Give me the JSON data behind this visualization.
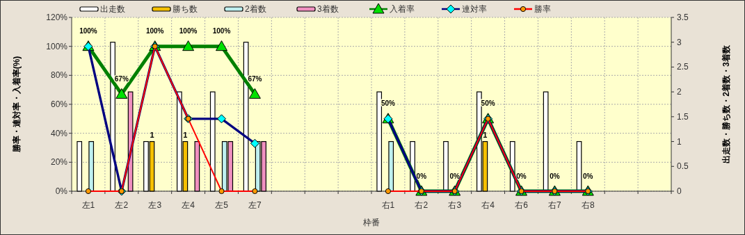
{
  "chart_data": {
    "type": "bar",
    "xlabel": "枠番",
    "ylabel": "勝率・連対率・入着率(%)",
    "y2label": "出走数・勝ち数・2着数・3着数",
    "categories": [
      "左1",
      "左2",
      "左3",
      "左4",
      "左5",
      "左7",
      null,
      null,
      null,
      "右1",
      "右2",
      "右3",
      "右4",
      "右6",
      "右7",
      "右8",
      null,
      null
    ],
    "ylim": [
      0,
      120
    ],
    "yticks": [
      {
        "value": 0,
        "label": "0%"
      },
      {
        "value": 20,
        "label": "20%"
      },
      {
        "value": 40,
        "label": "40%"
      },
      {
        "value": 60,
        "label": "60%"
      },
      {
        "value": 80,
        "label": "80%"
      },
      {
        "value": 100,
        "label": "100%"
      },
      {
        "value": 120,
        "label": "120%"
      }
    ],
    "y2lim": [
      0,
      3.5
    ],
    "y2ticks": [
      0,
      0.5,
      1,
      1.5,
      2,
      2.5,
      3,
      3.5
    ],
    "grid": true,
    "legend": "top",
    "series": [
      {
        "name": "出走数",
        "axis": "y2",
        "color": "#ffffff",
        "values": [
          1,
          3,
          1,
          2,
          2,
          3,
          null,
          null,
          null,
          2,
          1,
          1,
          2,
          1,
          2,
          1,
          null,
          null
        ]
      },
      {
        "name": "勝ち数",
        "axis": "y2",
        "color": "#f5c000",
        "values": [
          0,
          0,
          1,
          1,
          0,
          0,
          null,
          null,
          null,
          0,
          0,
          0,
          1,
          0,
          0,
          0,
          null,
          null
        ],
        "value_labels": [
          null,
          null,
          "1",
          "1",
          null,
          null,
          null,
          null,
          null,
          null,
          null,
          null,
          "1",
          null,
          null,
          null,
          null,
          null
        ]
      },
      {
        "name": "2着数",
        "axis": "y2",
        "color": "#bff0f0",
        "values": [
          1,
          0,
          0,
          0,
          1,
          1,
          null,
          null,
          null,
          1,
          0,
          0,
          0,
          0,
          0,
          0,
          null,
          null
        ]
      },
      {
        "name": "3着数",
        "axis": "y2",
        "color": "#f090c0",
        "values": [
          0,
          2,
          0,
          1,
          1,
          1,
          null,
          null,
          null,
          0,
          0,
          0,
          0,
          0,
          0,
          0,
          null,
          null
        ]
      },
      {
        "name": "入着率",
        "type": "line",
        "color": "#008000",
        "marker": "triangle",
        "colors": [
          "#00e000",
          "#00e000",
          "#00e000",
          "#00e000",
          "#00e000",
          "#00e000",
          null,
          null,
          null,
          "#00e000",
          "#00e000",
          "#00e000",
          "#00e000",
          "#00e000",
          "#00e000",
          "#00e000",
          null,
          null
        ],
        "values": [
          100,
          67,
          100,
          100,
          100,
          67,
          null,
          null,
          null,
          50,
          0,
          0,
          50,
          0,
          0,
          0,
          null,
          null
        ],
        "value_labels": [
          "100%",
          "67%",
          "100%",
          "100%",
          "100%",
          "67%",
          null,
          null,
          null,
          "50%",
          "0%",
          "0%",
          "50%",
          "0%",
          "0%",
          "0%",
          null,
          null
        ]
      },
      {
        "name": "連対率",
        "type": "line",
        "color": "#000080",
        "marker": "diamond",
        "colors": [
          "#00ffff",
          "#00ffff",
          "#00ffff",
          "#00ffff",
          "#00ffff",
          "#00ffff",
          null,
          null,
          null,
          "#00ffff",
          "#00ffff",
          "#00ffff",
          "#00ffff",
          "#00ffff",
          "#00ffff",
          "#00ffff",
          null,
          null
        ],
        "values": [
          100,
          0,
          100,
          50,
          50,
          33,
          null,
          null,
          null,
          50,
          0,
          0,
          50,
          0,
          0,
          0,
          null,
          null
        ]
      },
      {
        "name": "勝率",
        "type": "line",
        "color": "#ff0000",
        "marker": "circle",
        "colors": [
          "#ff9900",
          "#ff9900",
          "#ff9900",
          "#ff9900",
          "#ff9900",
          "#ff9900",
          null,
          null,
          null,
          "#ff9900",
          "#ff9900",
          "#ff9900",
          "#ff9900",
          "#ff9900",
          "#ff9900",
          "#ff9900",
          null,
          null
        ],
        "values": [
          0,
          0,
          100,
          50,
          0,
          0,
          null,
          null,
          null,
          0,
          0,
          0,
          50,
          0,
          0,
          0,
          null,
          null
        ]
      }
    ]
  }
}
